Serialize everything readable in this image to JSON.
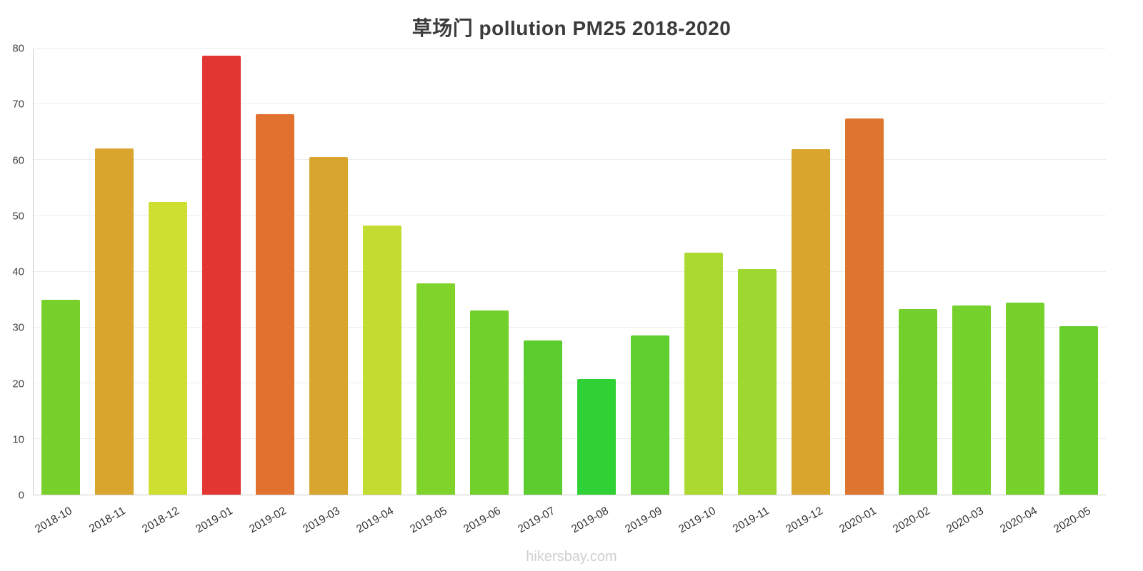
{
  "page": {
    "title": "草场门 pollution PM25 2018-2020",
    "watermark": "hikersbay.com"
  },
  "chart_data": {
    "type": "bar",
    "title": "草场门 pollution PM25 2018-2020",
    "categories": [
      "2018-10",
      "2018-11",
      "2018-12",
      "2019-01",
      "2019-02",
      "2019-03",
      "2019-04",
      "2019-05",
      "2019-06",
      "2019-07",
      "2019-08",
      "2019-09",
      "2019-10",
      "2019-11",
      "2019-12",
      "2020-01",
      "2020-02",
      "2020-03",
      "2020-04",
      "2020-05"
    ],
    "values": [
      35.0,
      62.1,
      52.5,
      78.7,
      68.2,
      60.6,
      48.3,
      37.9,
      33.0,
      27.6,
      20.7,
      28.5,
      43.4,
      40.4,
      61.9,
      67.5,
      33.3,
      33.9,
      34.4,
      30.2
    ],
    "colors": [
      "#78d12b",
      "#d9a52d",
      "#cfdf32",
      "#e23632",
      "#e0712f",
      "#d8a52e",
      "#c3dc31",
      "#80d32a",
      "#72d02c",
      "#5bcd2e",
      "#30d134",
      "#60ce2e",
      "#abd930",
      "#9dd72f",
      "#d9a52d",
      "#df762f",
      "#73d02c",
      "#75d12c",
      "#76d12b",
      "#69cf2d"
    ],
    "xlabel": "",
    "ylabel": "",
    "ylim": [
      0,
      80
    ],
    "yticks": [
      0,
      10,
      20,
      30,
      40,
      50,
      60,
      70,
      80
    ],
    "grid": "horizontal",
    "legend": "none",
    "x_label_rotation_deg": -30
  }
}
